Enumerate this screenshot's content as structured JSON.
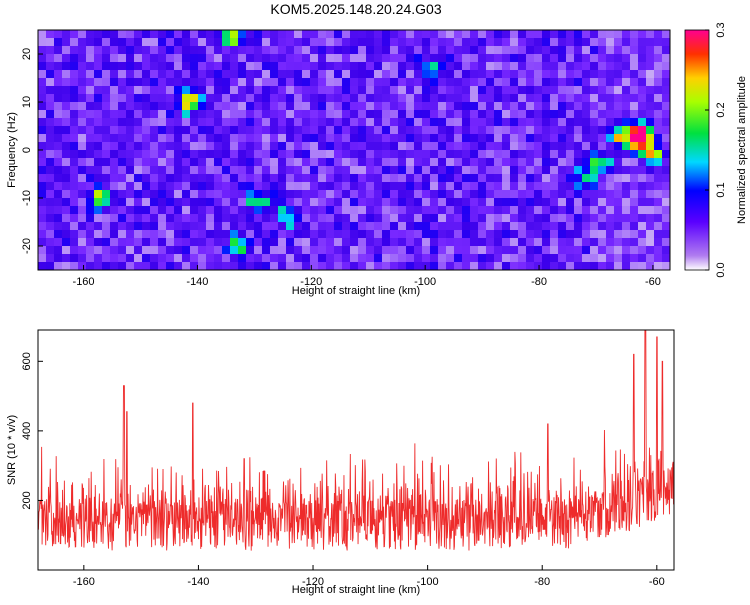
{
  "page_title": "KOM5.2025.148.20.24.G03",
  "colors": {
    "snr_line": "#ee2b2b",
    "axis": "#000000",
    "background": "#ffffff"
  },
  "chart_data": [
    {
      "type": "heatmap",
      "title": "KOM5.2025.148.20.24.G03",
      "xlabel": "Height of straight line (km)",
      "ylabel": "Frequency (Hz)",
      "xlim": [
        -168,
        -57
      ],
      "ylim": [
        -25,
        25
      ],
      "x_ticks": [
        -160,
        -140,
        -120,
        -100,
        -80,
        -60
      ],
      "y_ticks": [
        -20,
        -10,
        0,
        10,
        20
      ],
      "colorbar": {
        "label": "Normalized spectral amplitude",
        "range": [
          0,
          0.3
        ],
        "ticks": [
          "0.0",
          "0.1",
          "0.2",
          "0.3"
        ],
        "colormap": [
          "#ffffff",
          "#8a2be2",
          "#0000ff",
          "#00ffff",
          "#00ff00",
          "#ffff00",
          "#ff8000",
          "#ff0000",
          "#ff00a0"
        ]
      },
      "hotspots": [
        {
          "x": -62.5,
          "y": 2,
          "value": 0.29
        },
        {
          "x": -60,
          "y": -1,
          "value": 0.18
        },
        {
          "x": -66,
          "y": 3,
          "value": 0.17
        },
        {
          "x": -69,
          "y": -3,
          "value": 0.14
        },
        {
          "x": -62,
          "y": 4.5,
          "value": 0.16
        },
        {
          "x": -141.5,
          "y": 10,
          "value": 0.2
        },
        {
          "x": -134,
          "y": 24,
          "value": 0.17
        },
        {
          "x": -157,
          "y": -10,
          "value": 0.15
        },
        {
          "x": -129,
          "y": -11,
          "value": 0.14
        },
        {
          "x": -133,
          "y": -20,
          "value": 0.13
        },
        {
          "x": -99,
          "y": 17,
          "value": 0.12
        },
        {
          "x": -124,
          "y": -14,
          "value": 0.12
        },
        {
          "x": -72,
          "y": -6,
          "value": 0.11
        }
      ]
    },
    {
      "type": "line",
      "xlabel": "Height of straight line (km)",
      "ylabel": "SNR (10 * v/v)",
      "xlim": [
        -168,
        -57
      ],
      "ylim": [
        0,
        690
      ],
      "x_ticks": [
        -160,
        -140,
        -120,
        -100,
        -80,
        -60
      ],
      "y_ticks": [
        200,
        400,
        600
      ],
      "baseline": 130,
      "peaks": [
        {
          "x": -153,
          "y": 530
        },
        {
          "x": -152.5,
          "y": 455
        },
        {
          "x": -141,
          "y": 480
        },
        {
          "x": -132,
          "y": 320
        },
        {
          "x": -79,
          "y": 420
        },
        {
          "x": -64,
          "y": 620
        },
        {
          "x": -62,
          "y": 690
        },
        {
          "x": -60,
          "y": 670
        },
        {
          "x": -59,
          "y": 600
        }
      ]
    }
  ]
}
